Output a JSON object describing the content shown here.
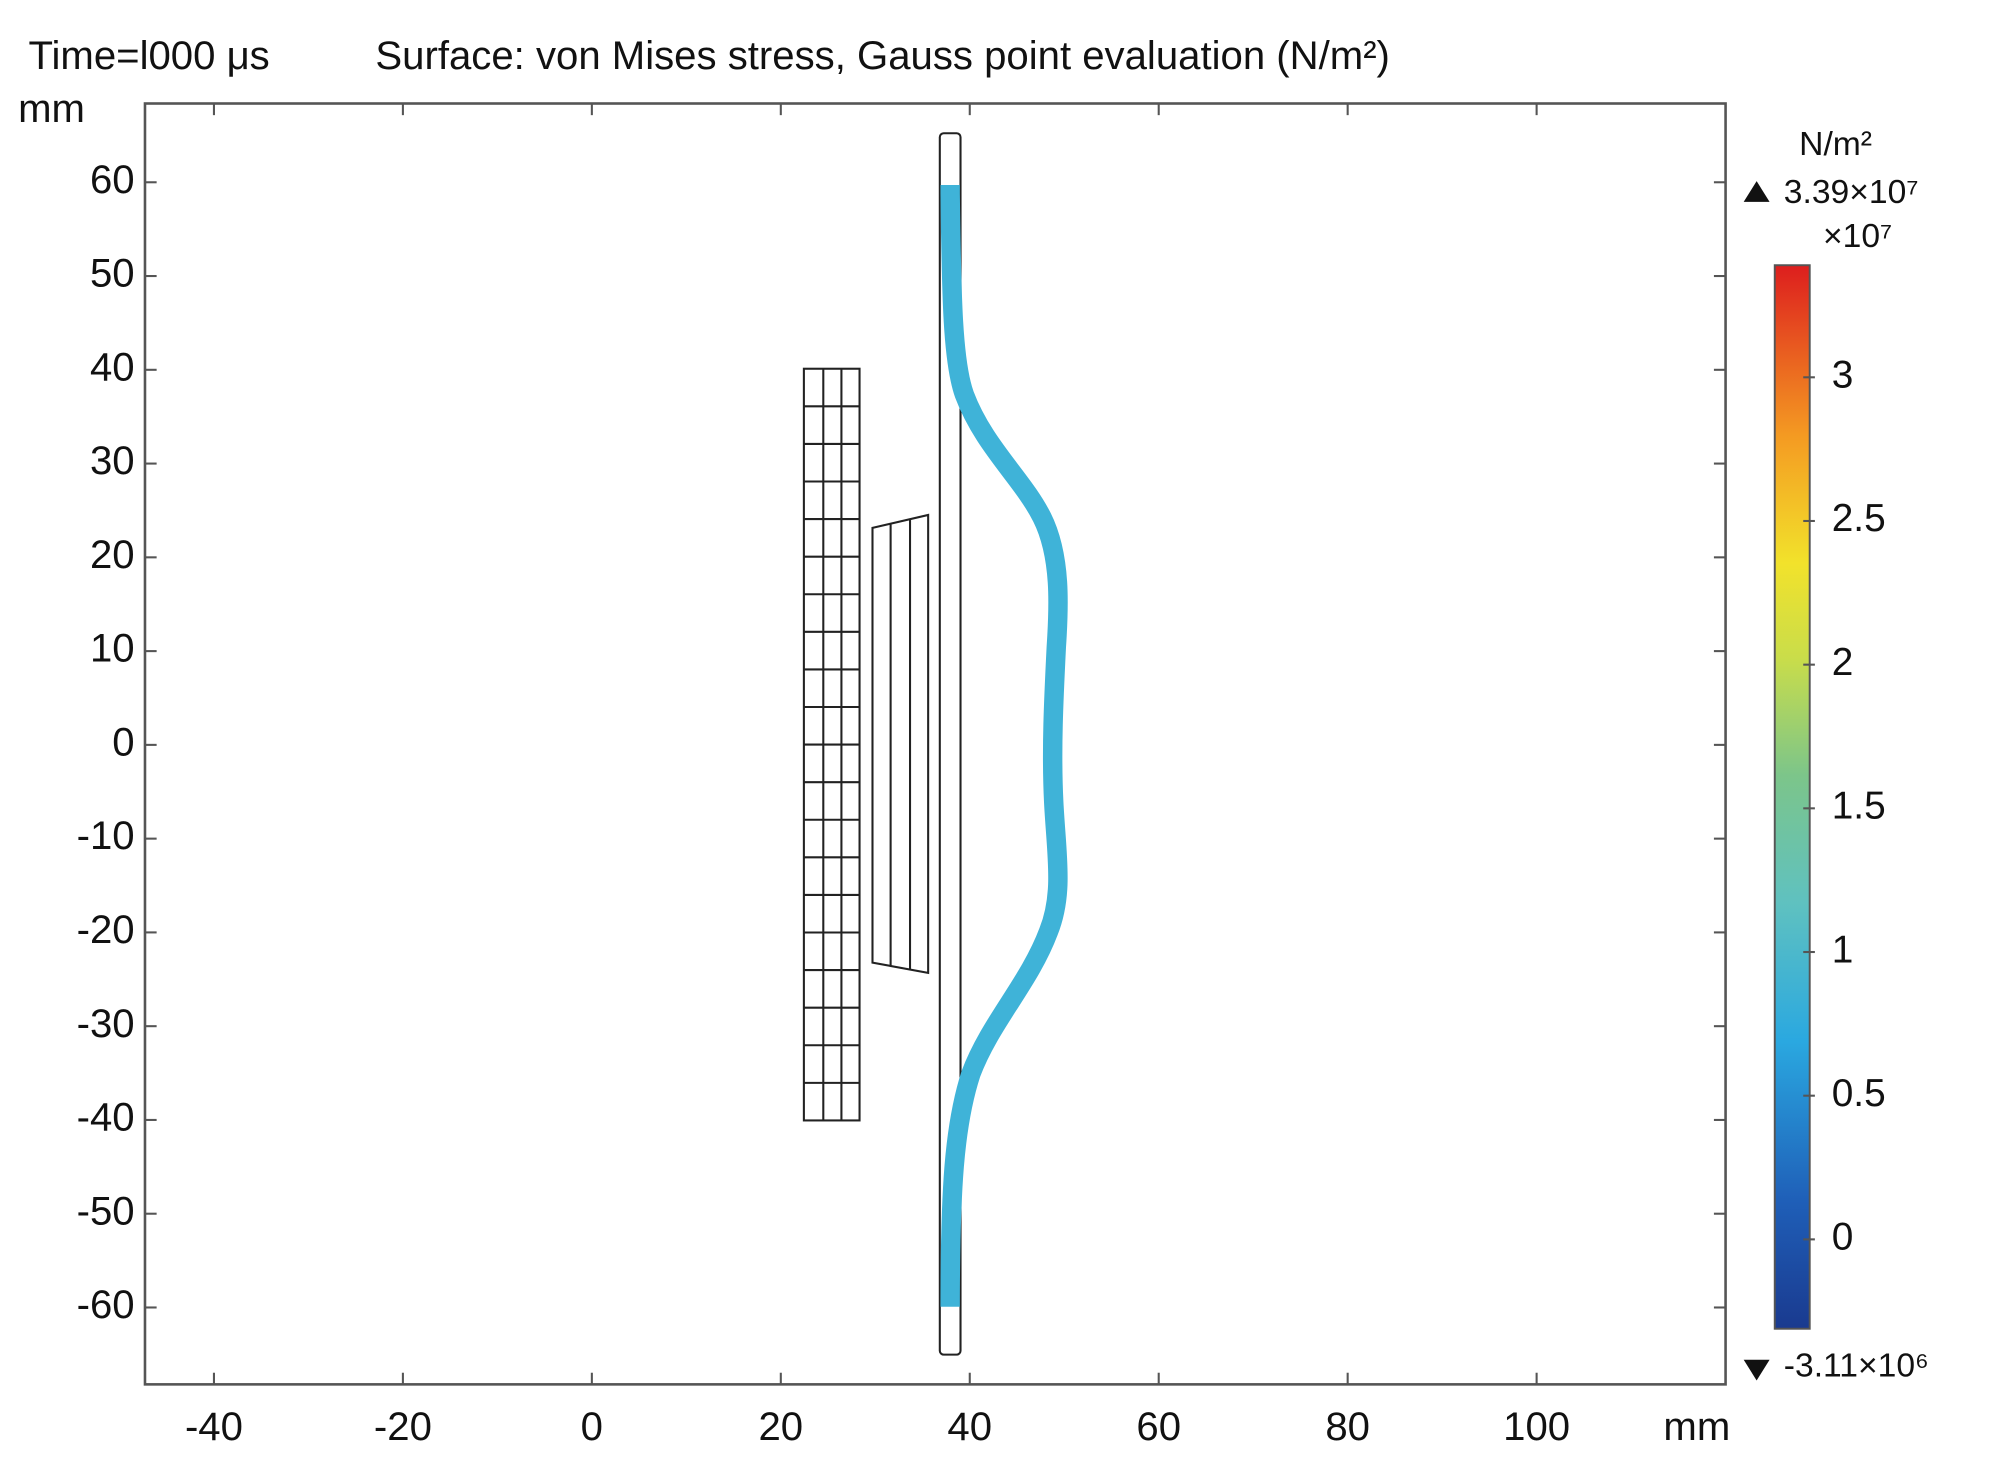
{
  "chart_data": {
    "type": "surface",
    "time_label": "Time=l000 μs",
    "title": "Surface: von Mises stress, Gauss point evaluation (N/m²)",
    "xlabel": "mm",
    "ylabel": "mm",
    "xlim": [
      -47.3,
      120
    ],
    "xticks": [
      -40,
      -20,
      0,
      20,
      40,
      60,
      80,
      100
    ],
    "ylim": [
      -68.2,
      68.4
    ],
    "yticks": [
      -60,
      -50,
      -40,
      -30,
      -20,
      -10,
      0,
      10,
      20,
      30,
      40,
      50,
      60
    ],
    "colorbar": {
      "label": "N/m²",
      "multiplier": "×10⁷",
      "max": {
        "value": 3.39,
        "label": "3.39×10⁷"
      },
      "min": {
        "value": -0.311,
        "label": "-3.11×10⁶"
      },
      "ticks": [
        0,
        0.5,
        1,
        1.5,
        2,
        2.5,
        3
      ]
    }
  }
}
